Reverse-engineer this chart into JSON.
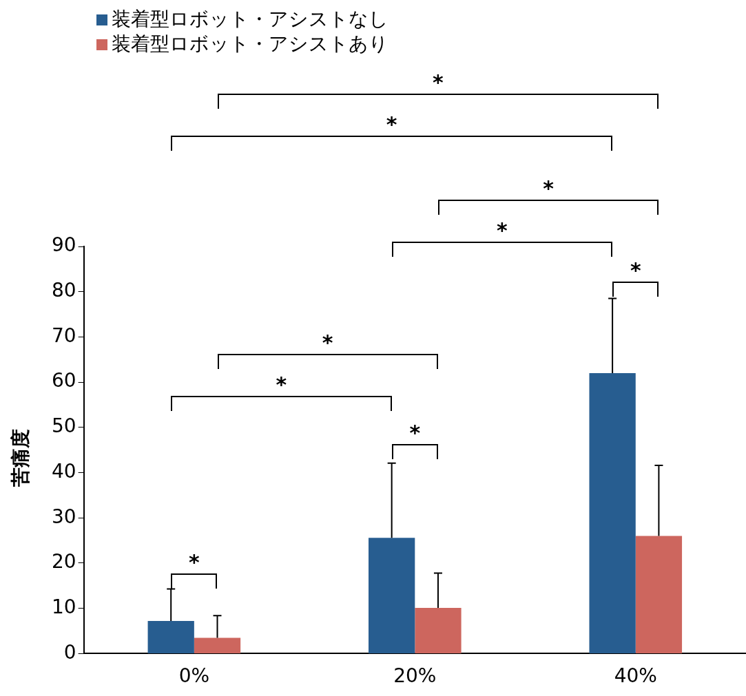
{
  "chart_data": {
    "type": "bar",
    "ylabel": "苦痛度",
    "categories": [
      "0%",
      "20%",
      "40%"
    ],
    "series": [
      {
        "name": "装着型ロボット・アシストなし",
        "color": "#275d90",
        "values": [
          7.2,
          25.6,
          62.0
        ],
        "errors": [
          [
            7.2,
            14.3
          ],
          [
            25.6,
            42.1
          ],
          [
            62.0,
            78.5
          ]
        ]
      },
      {
        "name": "装着型ロボット・アシストあり",
        "color": "#cd665e",
        "values": [
          3.5,
          10.1,
          26.0
        ],
        "errors": [
          [
            3.5,
            8.4
          ],
          [
            10.1,
            17.8
          ],
          [
            26.0,
            41.6
          ]
        ]
      }
    ],
    "ylim": [
      0,
      90
    ],
    "yticks": [
      0,
      10,
      20,
      30,
      40,
      50,
      60,
      70,
      80,
      90
    ],
    "grid": false,
    "legend": "top left",
    "annotations": [
      "*",
      "*",
      "*",
      "*",
      "*",
      "*",
      "*",
      "*",
      "*"
    ]
  }
}
